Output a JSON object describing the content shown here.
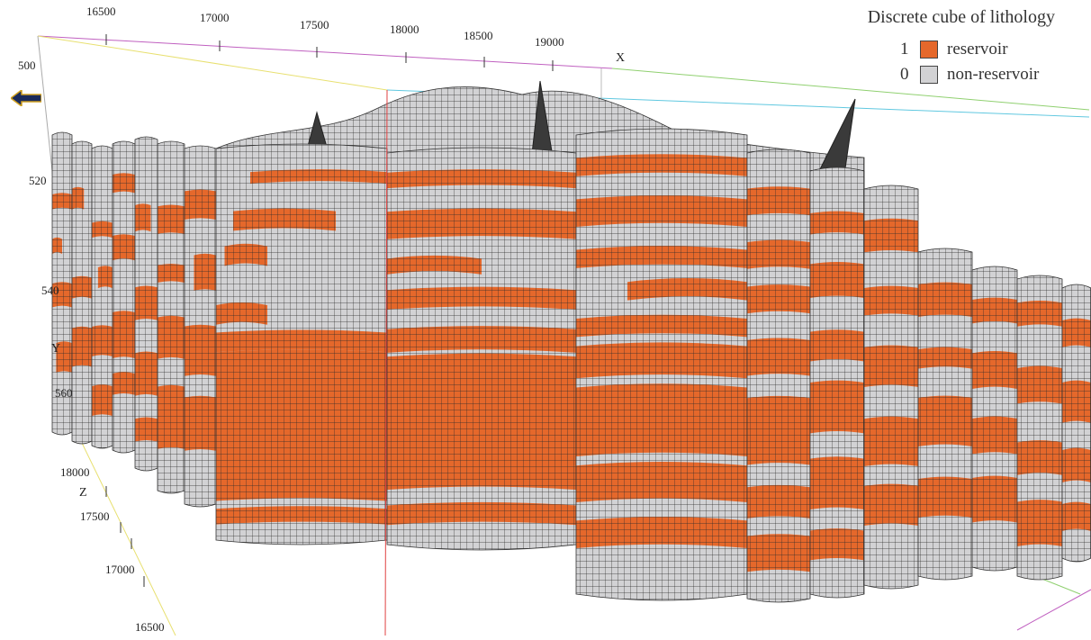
{
  "legend": {
    "title": "Discrete cube of lithology",
    "items": [
      {
        "code": "1",
        "label": "reservoir",
        "color": "#e5682b"
      },
      {
        "code": "0",
        "label": "non-reservoir",
        "color": "#d2d2d4"
      }
    ]
  },
  "axes": {
    "x": {
      "name": "X",
      "ticks": [
        "16500",
        "17000",
        "17500",
        "18000",
        "18500",
        "19000"
      ]
    },
    "y": {
      "name": "Y",
      "ticks": [
        "500",
        "520",
        "540",
        "560"
      ]
    },
    "z": {
      "name": "Z",
      "ticks": [
        "18000",
        "17500",
        "17000",
        "16500"
      ]
    }
  },
  "colors": {
    "reservoir": "#e5682b",
    "non_reservoir": "#d2d2d4",
    "grid_line": "#2a2a2a",
    "axis_x": "#c060c0",
    "axis_z": "#e8e070",
    "axis_box_green": "#90d070",
    "axis_box_cyan": "#60c8e0",
    "axis_red": "#e04040"
  },
  "icons": {
    "navigation": "nav-arrow-icon"
  }
}
